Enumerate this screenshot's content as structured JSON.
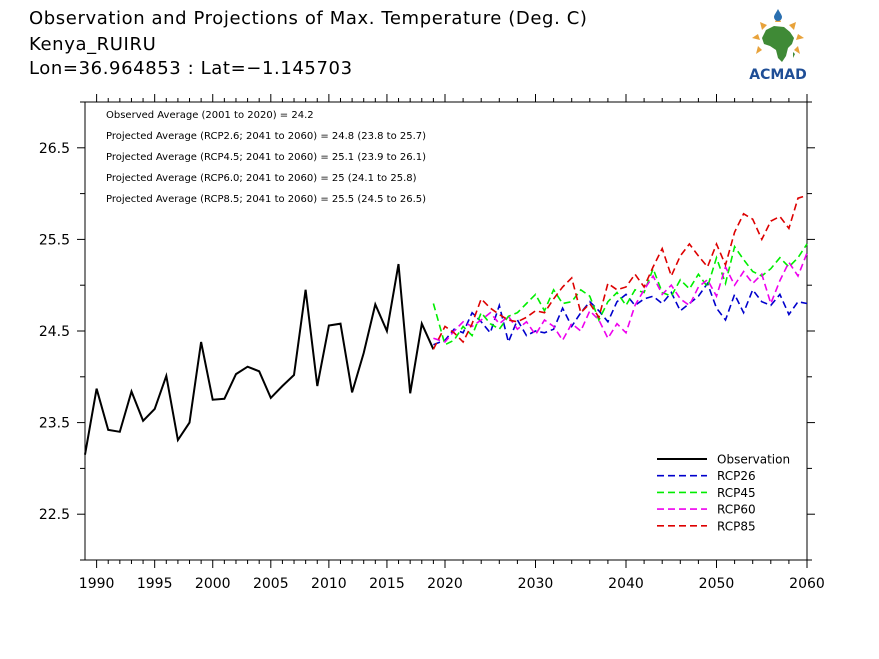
{
  "header": {
    "title": "Observation and Projections of Max. Temperature (Deg. C)",
    "location": "Kenya_RUIRU",
    "coords": "Lon=36.964853 : Lat=−1.145703"
  },
  "logo": {
    "text": "ACMAD",
    "icon": "africa-map-logo-icon"
  },
  "colors": {
    "observation": "#000000",
    "rcp26": "#0000cc",
    "rcp45": "#00ee00",
    "rcp60": "#ee00ee",
    "rcp85": "#dd0000"
  },
  "chart_data": {
    "type": "line",
    "xlim": [
      1989,
      2060
    ],
    "ylim": [
      22.0,
      27.0
    ],
    "x_ticks": [
      1990,
      1995,
      2000,
      2005,
      2010,
      2015,
      2020,
      2030,
      2040,
      2050,
      2060
    ],
    "y_ticks": [
      22.5,
      23.5,
      24.5,
      25.5,
      26.5
    ],
    "y_tick_labels": [
      "22.5",
      "23.5",
      "24.5",
      "25.5",
      "26.5"
    ],
    "annotations": [
      "Observed Average (2001 to 2020) = 24.2",
      "Projected Average (RCP2.6; 2041 to 2060) = 24.8 (23.8 to 25.7)",
      "Projected Average (RCP4.5; 2041 to 2060) = 25.1 (23.9 to 26.1)",
      "Projected Average (RCP6.0; 2041 to 2060) = 25 (24.1 to 25.8)",
      "Projected Average (RCP8.5; 2041 to 2060) = 25.5 (24.5 to 26.5)"
    ],
    "legend": [
      "Observation",
      "RCP26",
      "RCP45",
      "RCP60",
      "RCP85"
    ],
    "legend_position": "lower-right",
    "series": [
      {
        "name": "Observation",
        "style": "solid",
        "x": [
          1989,
          1990,
          1991,
          1992,
          1993,
          1994,
          1995,
          1996,
          1997,
          1998,
          1999,
          2000,
          2001,
          2002,
          2003,
          2004,
          2005,
          2006,
          2007,
          2008,
          2009,
          2010,
          2011,
          2012,
          2013,
          2014,
          2015,
          2016,
          2017,
          2018,
          2019
        ],
        "y": [
          23.15,
          23.87,
          23.42,
          23.4,
          23.84,
          23.52,
          23.65,
          24.01,
          23.31,
          23.5,
          24.38,
          23.75,
          23.76,
          24.03,
          24.11,
          24.06,
          23.77,
          23.9,
          24.02,
          24.95,
          23.9,
          24.56,
          24.58,
          23.83,
          24.26,
          24.79,
          24.5,
          25.23,
          23.82,
          24.58,
          24.3
        ]
      },
      {
        "name": "RCP26",
        "style": "dashed",
        "x": [
          2019,
          2020,
          2021,
          2022,
          2023,
          2024,
          2025,
          2026,
          2027,
          2028,
          2029,
          2030,
          2031,
          2032,
          2033,
          2034,
          2035,
          2036,
          2037,
          2038,
          2039,
          2040,
          2041,
          2042,
          2043,
          2044,
          2045,
          2046,
          2047,
          2048,
          2049,
          2050,
          2051,
          2052,
          2053,
          2054,
          2055,
          2056,
          2057,
          2058,
          2059,
          2060
        ],
        "y": [
          24.35,
          24.4,
          24.52,
          24.48,
          24.7,
          24.6,
          24.48,
          24.78,
          24.38,
          24.62,
          24.45,
          24.5,
          24.48,
          24.52,
          24.75,
          24.55,
          24.7,
          24.82,
          24.72,
          24.6,
          24.82,
          24.9,
          24.78,
          24.85,
          24.88,
          24.8,
          24.92,
          24.72,
          24.8,
          24.88,
          25.02,
          24.75,
          24.62,
          24.9,
          24.7,
          24.95,
          24.82,
          24.78,
          24.9,
          24.68,
          24.82,
          24.8
        ]
      },
      {
        "name": "RCP45",
        "style": "dashed",
        "x": [
          2019,
          2020,
          2021,
          2022,
          2023,
          2024,
          2025,
          2026,
          2027,
          2028,
          2029,
          2030,
          2031,
          2032,
          2033,
          2034,
          2035,
          2036,
          2037,
          2038,
          2039,
          2040,
          2041,
          2042,
          2043,
          2044,
          2045,
          2046,
          2047,
          2048,
          2049,
          2050,
          2051,
          2052,
          2053,
          2054,
          2055,
          2056,
          2057,
          2058,
          2059,
          2060
        ],
        "y": [
          24.8,
          24.35,
          24.4,
          24.55,
          24.45,
          24.7,
          24.58,
          24.52,
          24.66,
          24.7,
          24.8,
          24.9,
          24.72,
          24.95,
          24.8,
          24.82,
          24.95,
          24.88,
          24.62,
          24.82,
          24.92,
          24.78,
          24.95,
          24.92,
          25.18,
          24.92,
          24.88,
          25.06,
          24.96,
          25.12,
          24.98,
          25.3,
          25.02,
          25.42,
          25.28,
          25.15,
          25.1,
          25.18,
          25.3,
          25.2,
          25.3,
          25.45
        ]
      },
      {
        "name": "RCP60",
        "style": "dashed",
        "x": [
          2019,
          2020,
          2021,
          2022,
          2023,
          2024,
          2025,
          2026,
          2027,
          2028,
          2029,
          2030,
          2031,
          2032,
          2033,
          2034,
          2035,
          2036,
          2037,
          2038,
          2039,
          2040,
          2041,
          2042,
          2043,
          2044,
          2045,
          2046,
          2047,
          2048,
          2049,
          2050,
          2051,
          2052,
          2053,
          2054,
          2055,
          2056,
          2057,
          2058,
          2059,
          2060
        ],
        "y": [
          24.42,
          24.38,
          24.5,
          24.6,
          24.55,
          24.62,
          24.7,
          24.58,
          24.66,
          24.52,
          24.6,
          24.46,
          24.62,
          24.55,
          24.4,
          24.58,
          24.5,
          24.72,
          24.62,
          24.42,
          24.58,
          24.48,
          24.78,
          24.95,
          25.1,
          24.9,
          25.0,
          24.85,
          24.78,
          24.98,
          25.06,
          24.88,
          25.2,
          25.0,
          25.15,
          25.02,
          25.12,
          24.8,
          25.05,
          25.25,
          25.1,
          25.35
        ]
      },
      {
        "name": "RCP85",
        "style": "dashed",
        "x": [
          2019,
          2020,
          2021,
          2022,
          2023,
          2024,
          2025,
          2026,
          2027,
          2028,
          2029,
          2030,
          2031,
          2032,
          2033,
          2034,
          2035,
          2036,
          2037,
          2038,
          2039,
          2040,
          2041,
          2042,
          2043,
          2044,
          2045,
          2046,
          2047,
          2048,
          2049,
          2050,
          2051,
          2052,
          2053,
          2054,
          2055,
          2056,
          2057,
          2058,
          2059,
          2060
        ],
        "y": [
          24.3,
          24.55,
          24.48,
          24.38,
          24.58,
          24.85,
          24.75,
          24.68,
          24.62,
          24.6,
          24.65,
          24.72,
          24.7,
          24.85,
          24.98,
          25.08,
          24.7,
          24.8,
          24.65,
          25.02,
          24.95,
          24.98,
          25.12,
          24.98,
          25.2,
          25.4,
          25.1,
          25.32,
          25.45,
          25.32,
          25.2,
          25.45,
          25.22,
          25.58,
          25.78,
          25.72,
          25.5,
          25.7,
          25.75,
          25.62,
          25.95,
          25.98
        ]
      }
    ]
  }
}
